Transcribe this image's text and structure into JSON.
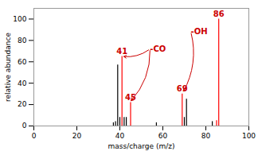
{
  "chart_data": {
    "type": "stem",
    "xlabel": "mass/charge (m/z)",
    "ylabel": "relative abundance",
    "x": [
      37,
      38,
      39,
      40,
      41,
      42,
      43,
      45,
      57,
      69,
      70,
      71,
      83,
      85,
      86
    ],
    "values": [
      3,
      4,
      57,
      8,
      65,
      8,
      8,
      22,
      3,
      30,
      8,
      25,
      4,
      5,
      100
    ],
    "colors": [
      "black",
      "black",
      "black",
      "black",
      "red",
      "black",
      "black",
      "red",
      "black",
      "red",
      "black",
      "black",
      "black",
      "red",
      "red"
    ],
    "xlim": [
      0,
      100
    ],
    "ylim": [
      0,
      110
    ],
    "xticks": [
      0,
      20,
      40,
      60,
      80,
      100
    ],
    "yticks": [
      0,
      20,
      40,
      60,
      80,
      100
    ],
    "annotations": [
      {
        "text": "41",
        "x": 41,
        "y": 67,
        "color": "#cc0000"
      },
      {
        "text": "45",
        "x": 45,
        "y": 24,
        "color": "#cc0000"
      },
      {
        "text": "69",
        "x": 69,
        "y": 32,
        "color": "#cc0000"
      },
      {
        "text": "86",
        "x": 86,
        "y": 102,
        "color": "#cc0000"
      },
      {
        "text": "-CO",
        "x": 54,
        "y": 72,
        "color": "#cc0000",
        "arrows_to": [
          [
            41.5,
            65
          ],
          [
            45,
            23
          ]
        ]
      },
      {
        "text": "-OH",
        "x": 73,
        "y": 88,
        "color": "#cc0000",
        "arrows_to": [
          [
            69.5,
            32
          ]
        ]
      }
    ]
  }
}
